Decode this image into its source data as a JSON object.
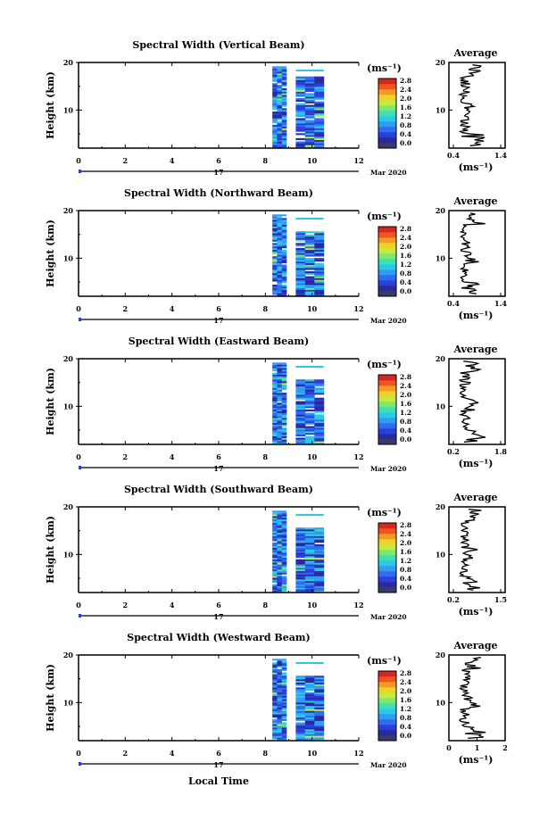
{
  "figure": {
    "xlabel": "Local Time",
    "date_day": "17",
    "date_month": "Mar 2020",
    "unit_label": "(ms⁻¹)",
    "avg_xlabel": "(ms⁻¹)",
    "avg_title": "Average",
    "ylabel": "Height (km)"
  },
  "colorbar": {
    "ticks": [
      "2.8",
      "2.4",
      "2.0",
      "1.6",
      "1.2",
      "0.8",
      "0.4",
      "0.0"
    ],
    "colors": [
      "#3a3a6a",
      "#2a2aa0",
      "#2b3fd9",
      "#2f6cf0",
      "#2f9df2",
      "#2cc9e6",
      "#3fe0b0",
      "#7de86a",
      "#c7e83c",
      "#f2d02a",
      "#f29a24",
      "#ee5522",
      "#d4281e"
    ]
  },
  "panels": [
    {
      "title": "Spectral Width (Vertical Beam)",
      "avg_xticks": [
        "0.4",
        "1.4"
      ]
    },
    {
      "title": "Spectral Width (Northward Beam)",
      "avg_xticks": [
        "0.4",
        "1.4"
      ]
    },
    {
      "title": "Spectral Width (Eastward Beam)",
      "avg_xticks": [
        "0.2",
        "1.8"
      ]
    },
    {
      "title": "Spectral Width (Southward Beam)",
      "avg_xticks": [
        "0.2",
        "1.5"
      ]
    },
    {
      "title": "Spectral Width (Westward Beam)",
      "avg_xticks": [
        "0",
        "1",
        "2"
      ]
    }
  ],
  "chart_data": [
    {
      "type": "heatmap",
      "title": "Spectral Width (Vertical Beam)",
      "xlabel": "",
      "ylabel": "Height (km)",
      "xlim": [
        0,
        12
      ],
      "ylim": [
        2,
        20
      ],
      "xticks": [
        "0",
        "2",
        "4",
        "6",
        "8",
        "10",
        "12"
      ],
      "yticks": [
        "10",
        "20"
      ],
      "data_time_range": [
        8.3,
        10.5
      ],
      "colorbar_range": [
        0,
        3.0
      ],
      "colorbar_unit": "(ms⁻¹)"
    },
    {
      "type": "heatmap",
      "title": "Spectral Width (Northward Beam)",
      "xlabel": "",
      "ylabel": "Height (km)",
      "xlim": [
        0,
        12
      ],
      "ylim": [
        2,
        20
      ],
      "xticks": [
        "0",
        "2",
        "4",
        "6",
        "8",
        "10",
        "12"
      ],
      "yticks": [
        "10",
        "20"
      ],
      "data_time_range": [
        8.3,
        10.5
      ],
      "colorbar_range": [
        0,
        3.0
      ],
      "colorbar_unit": "(ms⁻¹)"
    },
    {
      "type": "heatmap",
      "title": "Spectral Width (Eastward Beam)",
      "xlabel": "",
      "ylabel": "Height (km)",
      "xlim": [
        0,
        12
      ],
      "ylim": [
        2,
        20
      ],
      "xticks": [
        "0",
        "2",
        "4",
        "6",
        "8",
        "10",
        "12"
      ],
      "yticks": [
        "10",
        "20"
      ],
      "data_time_range": [
        8.3,
        10.5
      ],
      "colorbar_range": [
        0,
        3.0
      ],
      "colorbar_unit": "(ms⁻¹)"
    },
    {
      "type": "heatmap",
      "title": "Spectral Width (Southward Beam)",
      "xlabel": "",
      "ylabel": "Height (km)",
      "xlim": [
        0,
        12
      ],
      "ylim": [
        2,
        20
      ],
      "xticks": [
        "0",
        "2",
        "4",
        "6",
        "8",
        "10",
        "12"
      ],
      "yticks": [
        "10",
        "20"
      ],
      "data_time_range": [
        8.3,
        10.5
      ],
      "colorbar_range": [
        0,
        3.0
      ],
      "colorbar_unit": "(ms⁻¹)"
    },
    {
      "type": "heatmap",
      "title": "Spectral Width (Westward Beam)",
      "xlabel": "Local Time",
      "ylabel": "Height (km)",
      "xlim": [
        0,
        12
      ],
      "ylim": [
        2,
        20
      ],
      "xticks": [
        "0",
        "2",
        "4",
        "6",
        "8",
        "10",
        "12"
      ],
      "yticks": [
        "10",
        "20"
      ],
      "data_time_range": [
        8.3,
        10.5
      ],
      "colorbar_range": [
        0,
        3.0
      ],
      "colorbar_unit": "(ms⁻¹)"
    }
  ]
}
